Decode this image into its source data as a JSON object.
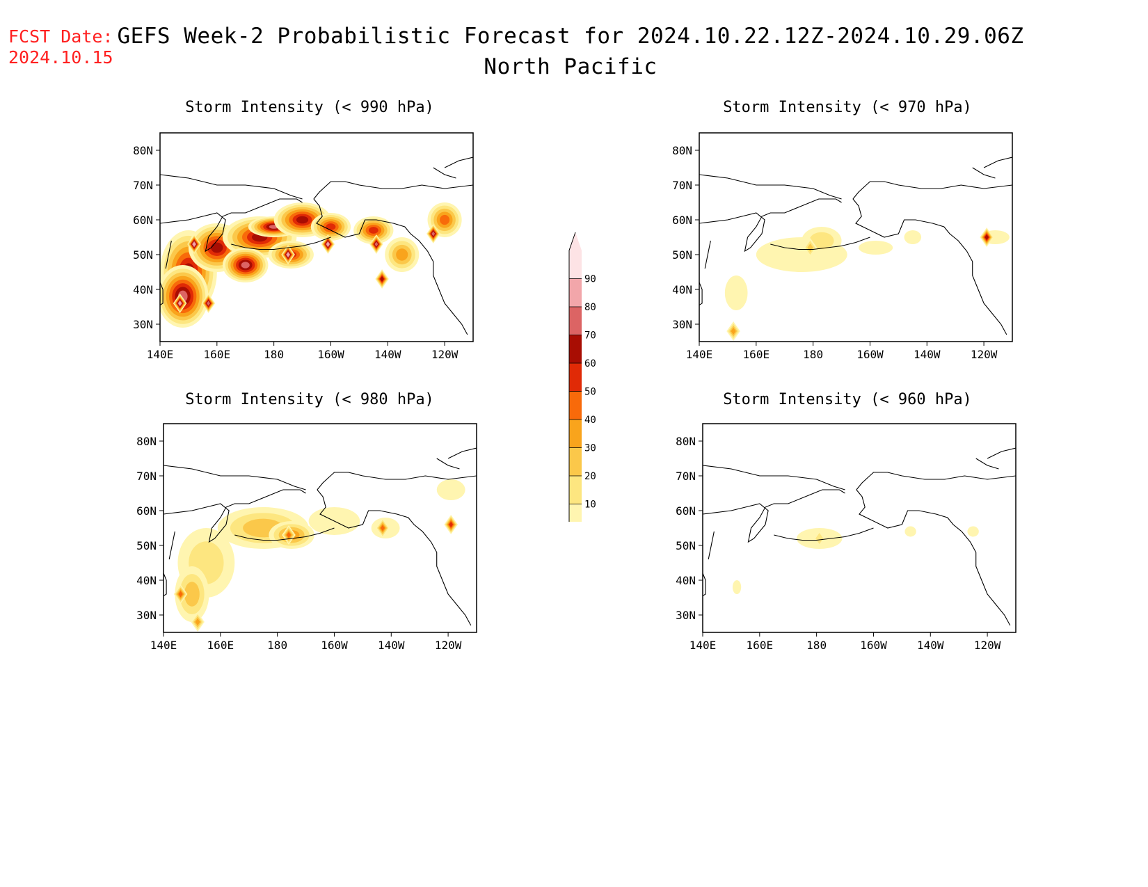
{
  "forecast_date": {
    "label": "FCST Date:",
    "value": "2024.10.15"
  },
  "title": {
    "line1": "GEFS Week-2 Probabilistic Forecast for 2024.10.22.12Z-2024.10.29.06Z",
    "line2": "North Pacific"
  },
  "axes": {
    "lat_ticks": [
      "80N",
      "70N",
      "60N",
      "50N",
      "40N",
      "30N"
    ],
    "lon_ticks": [
      "140E",
      "160E",
      "180",
      "160W",
      "140W",
      "120W"
    ],
    "lat_range": [
      25,
      85
    ],
    "lon_range": [
      140,
      250
    ]
  },
  "colorbar": {
    "levels": [
      "10",
      "20",
      "30",
      "40",
      "50",
      "60",
      "70",
      "80",
      "90"
    ],
    "colors": [
      "#fff5b0",
      "#fde680",
      "#fbc84a",
      "#f9a41c",
      "#f86a0a",
      "#e02a06",
      "#a80d03",
      "#dc6464",
      "#f2a6aa",
      "#fde3e5"
    ]
  },
  "panels": [
    {
      "id": "p990",
      "title": "Storm Intensity (< 990 hPa)",
      "blobs": [
        {
          "lon": 150,
          "lat": 45,
          "rx": 10,
          "ry": 12,
          "level": 6
        },
        {
          "lon": 148,
          "lat": 38,
          "rx": 9,
          "ry": 9,
          "level": 7
        },
        {
          "lon": 160,
          "lat": 52,
          "rx": 10,
          "ry": 7,
          "level": 6
        },
        {
          "lon": 175,
          "lat": 55,
          "rx": 13,
          "ry": 6,
          "level": 6
        },
        {
          "lon": 180,
          "lat": 58,
          "rx": 9,
          "ry": 3,
          "level": 7
        },
        {
          "lon": 190,
          "lat": 60,
          "rx": 10,
          "ry": 5,
          "level": 6
        },
        {
          "lon": 200,
          "lat": 58,
          "rx": 7,
          "ry": 4,
          "level": 5
        },
        {
          "lon": 215,
          "lat": 57,
          "rx": 7,
          "ry": 4,
          "level": 5
        },
        {
          "lon": 225,
          "lat": 50,
          "rx": 6,
          "ry": 5,
          "level": 3
        },
        {
          "lon": 240,
          "lat": 60,
          "rx": 6,
          "ry": 5,
          "level": 4
        },
        {
          "lon": 170,
          "lat": 47,
          "rx": 8,
          "ry": 5,
          "level": 7
        },
        {
          "lon": 186,
          "lat": 50,
          "rx": 8,
          "ry": 4,
          "level": 5
        }
      ],
      "peaks": [
        {
          "lon": 147,
          "lat": 36,
          "level": 8
        },
        {
          "lon": 157,
          "lat": 36,
          "level": 7
        },
        {
          "lon": 152,
          "lat": 53,
          "level": 8
        },
        {
          "lon": 185,
          "lat": 50,
          "level": 8
        },
        {
          "lon": 199,
          "lat": 53,
          "level": 8
        },
        {
          "lon": 216,
          "lat": 53,
          "level": 7
        },
        {
          "lon": 236,
          "lat": 56,
          "level": 7
        },
        {
          "lon": 218,
          "lat": 43,
          "level": 6
        }
      ]
    },
    {
      "id": "p970",
      "title": "Storm Intensity (< 970 hPa)",
      "blobs": [
        {
          "lon": 176,
          "lat": 50,
          "rx": 16,
          "ry": 5,
          "level": 0
        },
        {
          "lon": 183,
          "lat": 54,
          "rx": 7,
          "ry": 4,
          "level": 1
        },
        {
          "lon": 153,
          "lat": 39,
          "rx": 4,
          "ry": 5,
          "level": 0
        },
        {
          "lon": 202,
          "lat": 52,
          "rx": 6,
          "ry": 2,
          "level": 0
        },
        {
          "lon": 215,
          "lat": 55,
          "rx": 3,
          "ry": 2,
          "level": 0
        },
        {
          "lon": 244,
          "lat": 55,
          "rx": 5,
          "ry": 2,
          "level": 0
        }
      ],
      "peaks": [
        {
          "lon": 179,
          "lat": 52,
          "level": 2
        },
        {
          "lon": 152,
          "lat": 28,
          "level": 3
        },
        {
          "lon": 241,
          "lat": 55,
          "level": 6
        }
      ]
    },
    {
      "id": "p980",
      "title": "Storm Intensity (< 980 hPa)",
      "blobs": [
        {
          "lon": 155,
          "lat": 45,
          "rx": 10,
          "ry": 10,
          "level": 1
        },
        {
          "lon": 150,
          "lat": 36,
          "rx": 6,
          "ry": 8,
          "level": 2
        },
        {
          "lon": 175,
          "lat": 55,
          "rx": 16,
          "ry": 6,
          "level": 2
        },
        {
          "lon": 185,
          "lat": 53,
          "rx": 8,
          "ry": 4,
          "level": 3
        },
        {
          "lon": 200,
          "lat": 57,
          "rx": 9,
          "ry": 4,
          "level": 0
        },
        {
          "lon": 218,
          "lat": 55,
          "rx": 5,
          "ry": 3,
          "level": 0
        },
        {
          "lon": 241,
          "lat": 66,
          "rx": 5,
          "ry": 3,
          "level": 0
        }
      ],
      "peaks": [
        {
          "lon": 146,
          "lat": 36,
          "level": 4
        },
        {
          "lon": 152,
          "lat": 28,
          "level": 3
        },
        {
          "lon": 184,
          "lat": 53,
          "level": 4
        },
        {
          "lon": 217,
          "lat": 55,
          "level": 4
        },
        {
          "lon": 241,
          "lat": 56,
          "level": 5
        }
      ]
    },
    {
      "id": "p960",
      "title": "Storm Intensity (< 960 hPa)",
      "blobs": [
        {
          "lon": 181,
          "lat": 52,
          "rx": 8,
          "ry": 3,
          "level": 0
        },
        {
          "lon": 152,
          "lat": 38,
          "rx": 1.5,
          "ry": 2,
          "level": 0
        },
        {
          "lon": 213,
          "lat": 54,
          "rx": 2,
          "ry": 1.5,
          "level": 0
        },
        {
          "lon": 235,
          "lat": 54,
          "rx": 2,
          "ry": 1.5,
          "level": 0
        }
      ],
      "peaks": [
        {
          "lon": 181,
          "lat": 52,
          "level": 1
        }
      ]
    }
  ]
}
